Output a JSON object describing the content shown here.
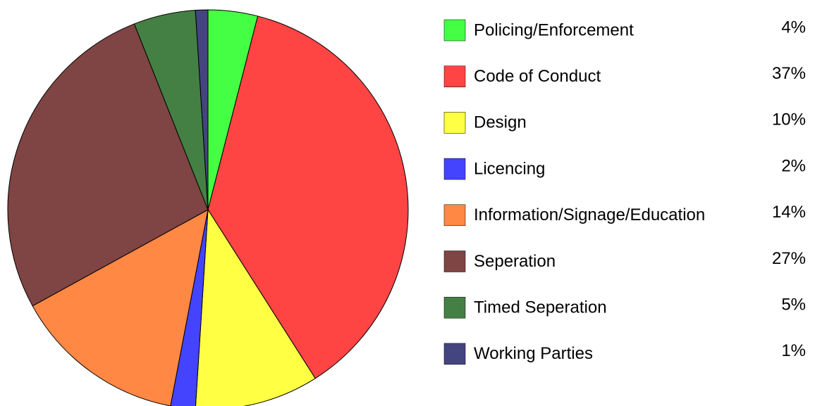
{
  "chart_data": {
    "type": "pie",
    "categories": [
      "Policing/Enforcement",
      "Code of Conduct",
      "Design",
      "Licencing",
      "Information/Signage/Education",
      "Seperation",
      "Timed Seperation",
      "Working Parties"
    ],
    "values": [
      4,
      37,
      10,
      2,
      14,
      27,
      5,
      1
    ],
    "value_labels": [
      "4%",
      "37%",
      "10%",
      "2%",
      "14%",
      "27%",
      "5%",
      "1%"
    ],
    "colors": [
      "#44ff44",
      "#ff4444",
      "#ffff44",
      "#4444ff",
      "#ff8844",
      "#7f4444",
      "#448044",
      "#444480"
    ]
  }
}
